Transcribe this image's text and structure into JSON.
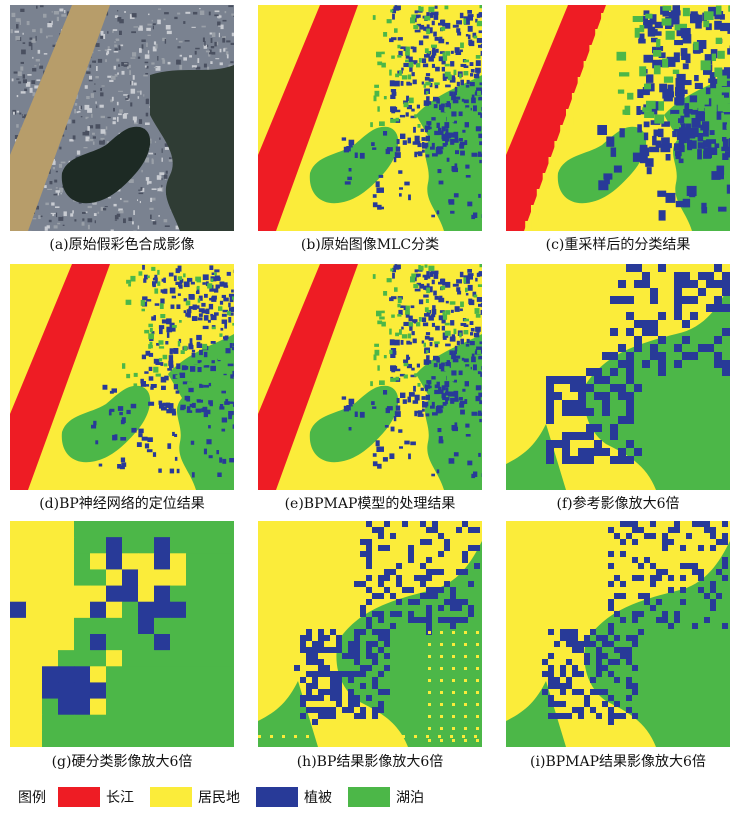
{
  "colors": {
    "river": "#ee1c24",
    "residential": "#fbec3a",
    "vegetation": "#283a98",
    "lake": "#4cb748"
  },
  "panels": [
    {
      "id": "a",
      "caption": "(a)原始假彩色合成影像",
      "kind": "photo"
    },
    {
      "id": "b",
      "caption": "(b)原始图像MLC分类",
      "kind": "classmap"
    },
    {
      "id": "c",
      "caption": "(c)重采样后的分类结果",
      "kind": "classmap"
    },
    {
      "id": "d",
      "caption": "(d)BP神经网络的定位结果",
      "kind": "classmap"
    },
    {
      "id": "e",
      "caption": "(e)BPMAP模型的处理结果",
      "kind": "classmap"
    },
    {
      "id": "f",
      "caption": "(f)参考影像放大6倍",
      "kind": "zoom"
    },
    {
      "id": "g",
      "caption": "(g)硬分类影像放大6倍",
      "kind": "zoom"
    },
    {
      "id": "h",
      "caption": "(h)BP结果影像放大6倍",
      "kind": "zoom"
    },
    {
      "id": "i",
      "caption": "(i)BPMAP结果影像放大6倍",
      "kind": "zoom"
    }
  ],
  "legend": {
    "title": "图例",
    "items": [
      {
        "label": "长江",
        "color_key": "river"
      },
      {
        "label": "居民地",
        "color_key": "residential"
      },
      {
        "label": "植被",
        "color_key": "vegetation"
      },
      {
        "label": "湖泊",
        "color_key": "lake"
      }
    ]
  }
}
